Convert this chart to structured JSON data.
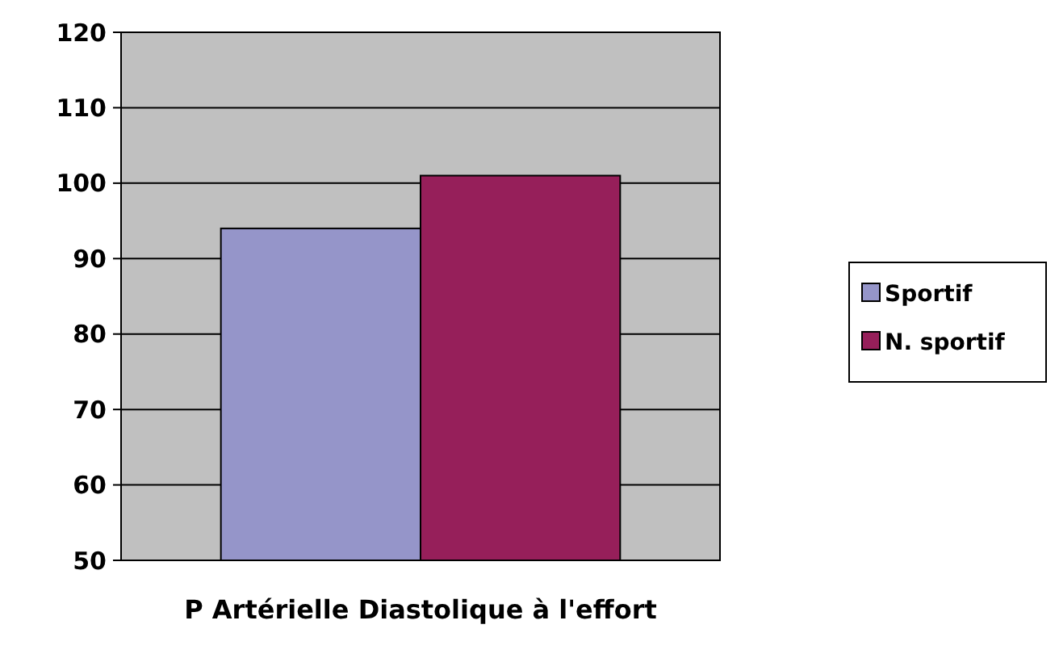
{
  "chart_data": {
    "type": "bar",
    "categories": [
      "P Artérielle Diastolique à l'effort"
    ],
    "series": [
      {
        "name": "Sportif",
        "color": "#9595c9",
        "values": [
          94
        ]
      },
      {
        "name": "N. sportif",
        "color": "#961f5a",
        "values": [
          101
        ]
      }
    ],
    "ylim": [
      50,
      120
    ],
    "yticks": [
      50,
      60,
      70,
      80,
      90,
      100,
      110,
      120
    ],
    "grid": "y",
    "legend": "right"
  }
}
